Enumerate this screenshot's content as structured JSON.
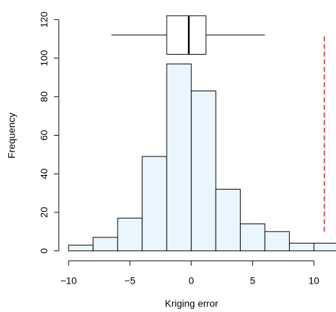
{
  "chart_data": {
    "type": "histogram",
    "xlabel": "Kriging error",
    "ylabel": "Frequency",
    "bins": [
      -10,
      -8,
      -6,
      -4,
      -2,
      0,
      2,
      4,
      6,
      8,
      10,
      12
    ],
    "values": [
      3,
      7,
      17,
      49,
      97,
      83,
      32,
      14,
      10,
      4,
      4
    ],
    "color": "#eaf5fd",
    "xlim": [
      -10.8,
      11.8
    ],
    "ylim": [
      -4.8,
      124.8
    ],
    "xticks": [
      {
        "value": -10,
        "label": "−10"
      },
      {
        "value": -5,
        "label": "−5"
      },
      0,
      5,
      10
    ],
    "yticks": [
      0,
      20,
      40,
      60,
      80,
      100,
      120
    ],
    "boxplot": {
      "min": -6.5,
      "q1": -2,
      "median": -0.2,
      "q3": 1.2,
      "max": 6.0,
      "y": 112,
      "half_height": 10
    },
    "reference_line": {
      "x": 10.85,
      "ymin": 10,
      "ymax": 112,
      "color": "#e05050"
    }
  }
}
